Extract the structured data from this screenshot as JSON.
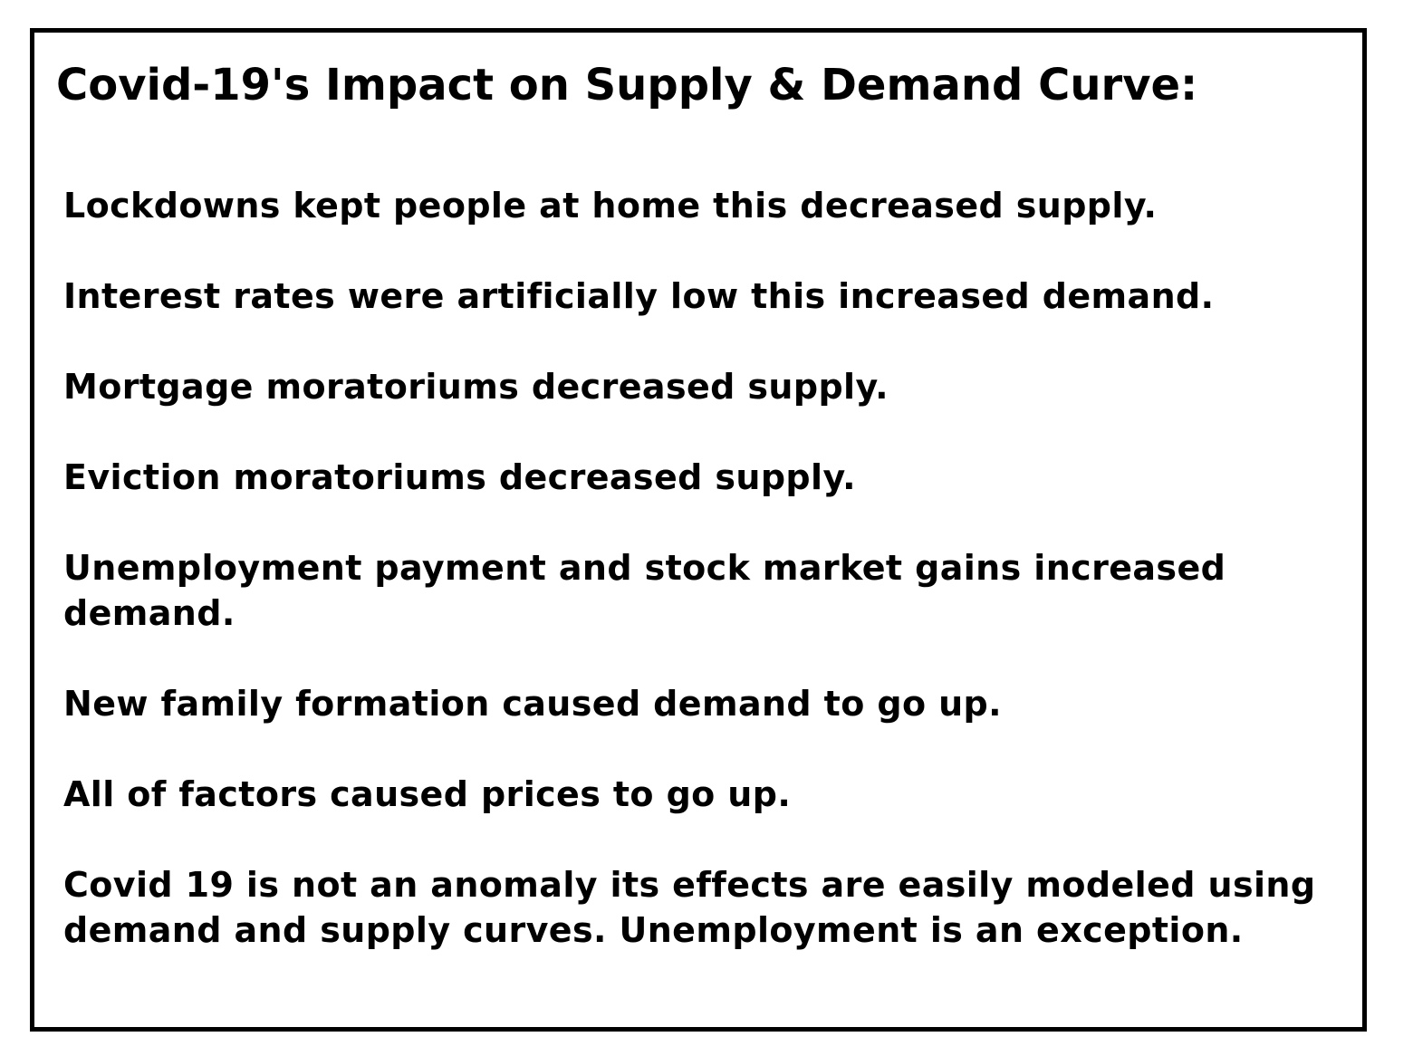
{
  "title": "Covid-19's Impact on Supply & Demand Curve:",
  "points": [
    "Lockdowns kept people at home this decreased supply.",
    "Interest rates were artificially low this increased demand.",
    "Mortgage moratoriums decreased supply.",
    "Eviction moratoriums decreased supply.",
    "Unemployment payment and stock market gains increased demand.",
    "New family formation caused demand to go up.",
    "All of factors caused prices to go up.",
    "Covid 19 is not an anomaly its effects are easily modeled using demand and supply curves.  Unemployment is an exception."
  ]
}
